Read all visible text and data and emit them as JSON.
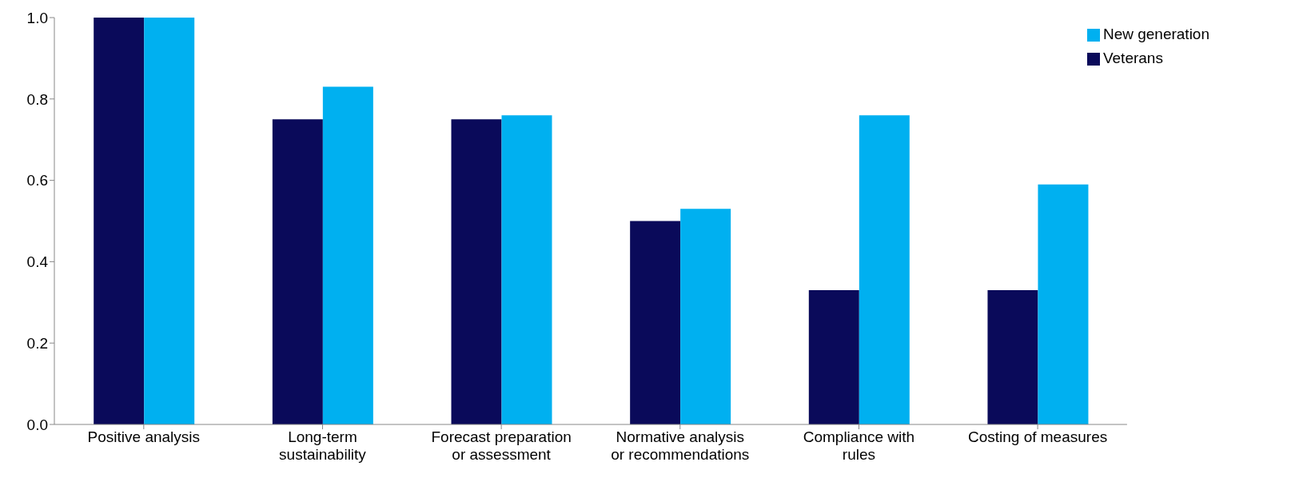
{
  "chart_data": {
    "type": "bar",
    "categories": [
      "Positive analysis",
      "Long-term sustainability",
      "Forecast preparation or assessment",
      "Normative analysis or recommendations",
      "Compliance with rules",
      "Costing of measures"
    ],
    "series": [
      {
        "name": "Veterans",
        "color": "#0a0a5a",
        "values": [
          1.0,
          0.75,
          0.75,
          0.5,
          0.33,
          0.33
        ]
      },
      {
        "name": "New generation",
        "color": "#00b0f0",
        "values": [
          1.0,
          0.83,
          0.76,
          0.53,
          0.76,
          0.59
        ]
      }
    ],
    "ylim": [
      0,
      1
    ],
    "yticks": [
      {
        "value": 0,
        "label": "0.0"
      },
      {
        "value": 0.2,
        "label": "0.2"
      },
      {
        "value": 0.4,
        "label": "0.4"
      },
      {
        "value": 0.6,
        "label": "0.6"
      },
      {
        "value": 0.8,
        "label": "0.8"
      },
      {
        "value": 1,
        "label": "1.0"
      }
    ],
    "grid": false,
    "legend": "top right"
  }
}
